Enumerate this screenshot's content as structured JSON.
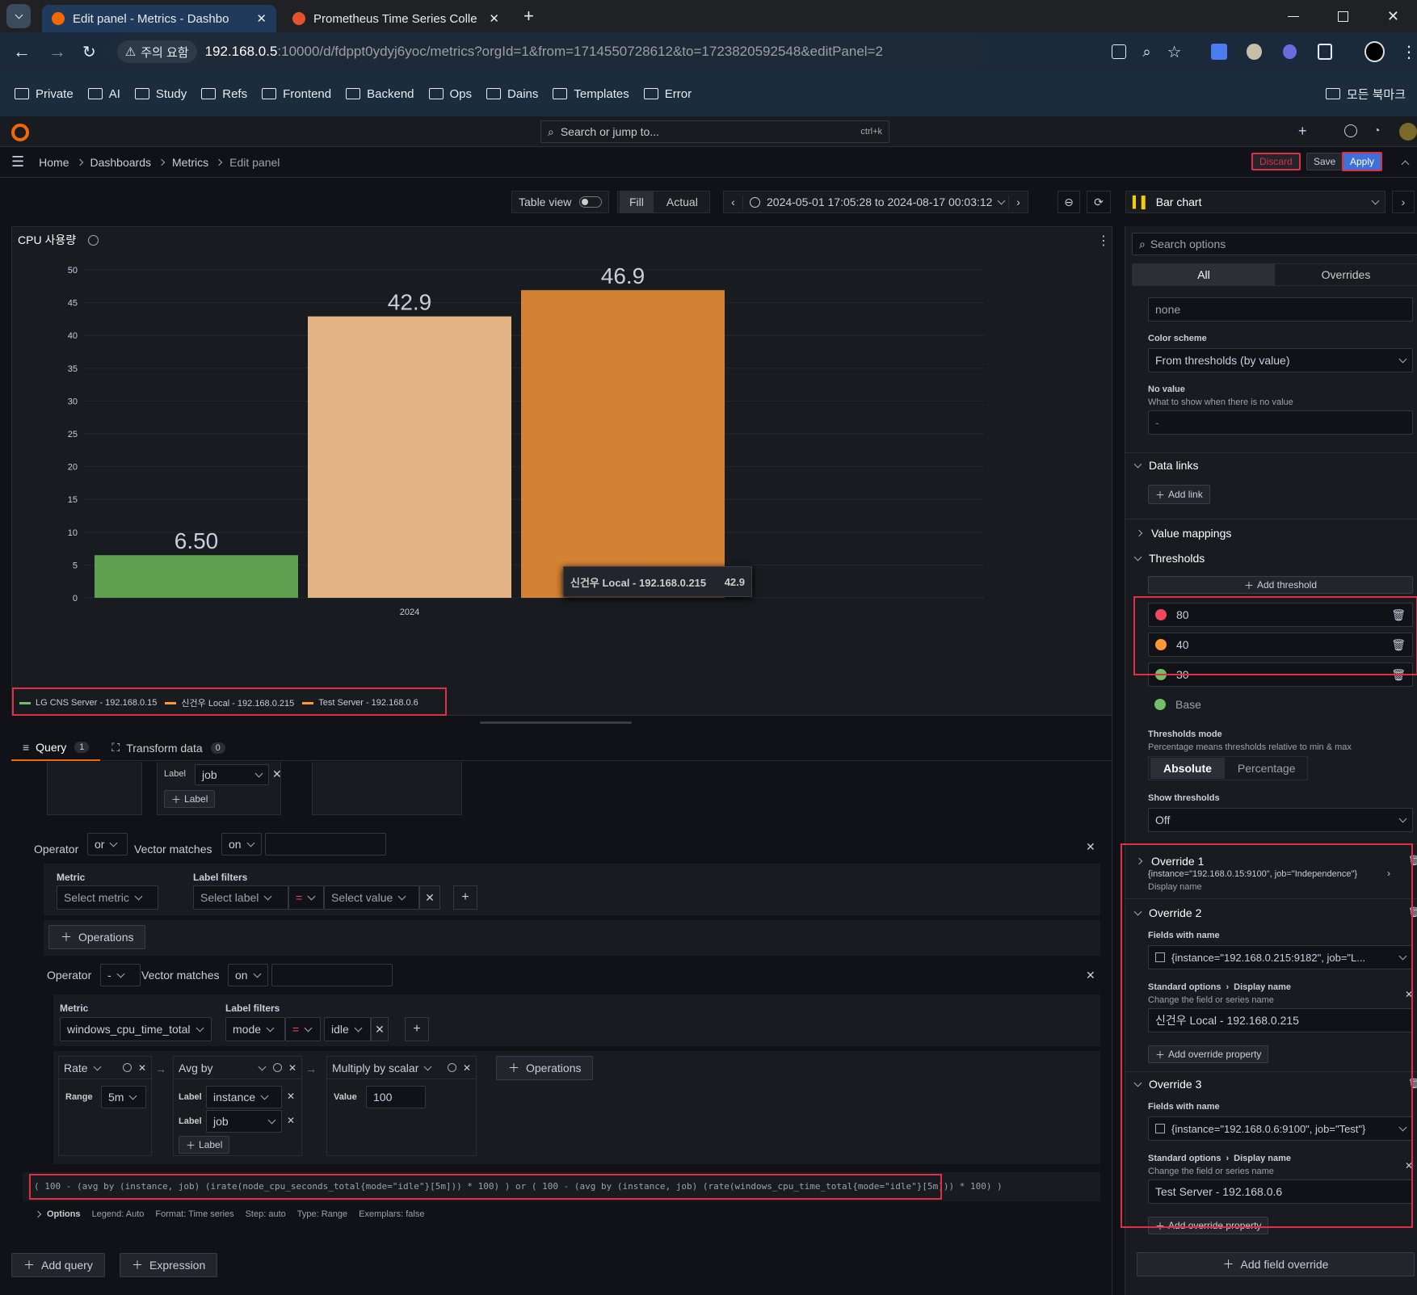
{
  "browser": {
    "tabs": [
      {
        "title": "Edit panel - Metrics - Dashbo",
        "active": true
      },
      {
        "title": "Prometheus Time Series Colle",
        "active": false
      }
    ],
    "security_label": "주의 요함",
    "url_host": "192.168.0.5",
    "url_rest": ":10000/d/fdppt0ydyj6yoc/metrics?orgId=1&from=1714550728612&to=1723820592548&editPanel=2",
    "bookmarks": [
      "Private",
      "AI",
      "Study",
      "Refs",
      "Frontend",
      "Backend",
      "Ops",
      "Dains",
      "Templates",
      "Error"
    ],
    "all_bookmarks": "모든 북마크"
  },
  "grafana": {
    "search_placeholder": "Search or jump to...",
    "search_shortcut": "ctrl+k",
    "breadcrumb": [
      "Home",
      "Dashboards",
      "Metrics",
      "Edit panel"
    ],
    "buttons": {
      "discard": "Discard",
      "save": "Save",
      "apply": "Apply"
    },
    "toolbar": {
      "table_view": "Table view",
      "fill": "Fill",
      "actual": "Actual",
      "time_range": "2024-05-01 17:05:28 to 2024-08-17 00:03:12",
      "viz": "Bar chart"
    },
    "panel": {
      "title": "CPU 사용량",
      "x_label": "2024",
      "tooltip_name": "신건우 Local - 192.168.0.215",
      "tooltip_value": "42.9",
      "legend": [
        {
          "name": "LG CNS Server - 192.168.0.15",
          "color": "#73bf69"
        },
        {
          "name": "신건우 Local - 192.168.0.215",
          "color": "#ff9830"
        },
        {
          "name": "Test Server - 192.168.0.6",
          "color": "#ff9830"
        }
      ]
    },
    "query_tabs": {
      "query": "Query",
      "query_count": "1",
      "transform": "Transform data",
      "transform_count": "0"
    },
    "query": {
      "label_word": "Label",
      "job": "job",
      "add_label": "Label",
      "operator_word": "Operator",
      "op1": "or",
      "vector_matches": "Vector matches",
      "on": "on",
      "metric_word": "Metric",
      "label_filters": "Label filters",
      "select_metric": "Select metric",
      "select_label": "Select label",
      "eq": "=",
      "select_value": "Select value",
      "operations": "Operations",
      "op2": "-",
      "metric2": "windows_cpu_time_total",
      "mode": "mode",
      "idle": "idle",
      "rate": "Rate",
      "range_word": "Range",
      "range": "5m",
      "avg_by": "Avg by",
      "instance": "instance",
      "multiply": "Multiply by scalar",
      "value_word": "Value",
      "value": "100",
      "expression": "( 100 - (avg by (instance, job) (irate(node_cpu_seconds_total{mode=\"idle\"}[5m])) * 100) ) or ( 100 - (avg by (instance, job) (rate(windows_cpu_time_total{mode=\"idle\"}[5m])) * 100) )",
      "options_line": [
        "Options",
        "Legend: Auto",
        "Format: Time series",
        "Step: auto",
        "Type: Range",
        "Exemplars: false"
      ],
      "add_query": "Add query",
      "expression_btn": "Expression"
    },
    "options_pane": {
      "search_placeholder": "Search options",
      "tabs": [
        "All",
        "Overrides"
      ],
      "unit_value": "none",
      "color_scheme_label": "Color scheme",
      "color_scheme": "From thresholds (by value)",
      "no_value_label": "No value",
      "no_value_desc": "What to show when there is no value",
      "no_value_placeholder": "-",
      "data_links": "Data links",
      "add_link": "Add link",
      "value_mappings": "Value mappings",
      "thresholds": "Thresholds",
      "add_threshold": "Add threshold",
      "threshold_items": [
        {
          "value": "80",
          "color": "#f2495c"
        },
        {
          "value": "40",
          "color": "#ff9830"
        },
        {
          "value": "30",
          "color": "#73bf69"
        },
        {
          "value": "Base",
          "color": "#73bf69"
        }
      ],
      "thresholds_mode_label": "Thresholds mode",
      "thresholds_mode_desc": "Percentage means thresholds relative to min & max",
      "mode_absolute": "Absolute",
      "mode_percentage": "Percentage",
      "show_thresholds_label": "Show thresholds",
      "show_thresholds": "Off",
      "override1_title": "Override 1",
      "override1_matcher": "{instance=\"192.168.0.15:9100\", job=\"Independence\"}",
      "override1_prop": "Display name",
      "override2_title": "Override 2",
      "fields_with_name": "Fields with name",
      "override2_field": "{instance=\"192.168.0.215:9182\", job=\"L...",
      "standard_options": "Standard options",
      "display_name": "Display name",
      "change_name_desc": "Change the field or series name",
      "override2_value": "신건우 Local - 192.168.0.215",
      "add_override_property": "Add override property",
      "override3_title": "Override 3",
      "override3_field": "{instance=\"192.168.0.6:9100\", job=\"Test\"}",
      "override3_value": "Test Server - 192.168.0.6",
      "add_field_override": "Add field override"
    }
  },
  "chart_data": {
    "type": "bar",
    "categories": [
      "2024"
    ],
    "series": [
      {
        "name": "LG CNS Server - 192.168.0.15",
        "values": [
          6.5
        ],
        "label": "6.50",
        "color": "#5fa150"
      },
      {
        "name": "신건우 Local - 192.168.0.215",
        "values": [
          42.9
        ],
        "label": "42.9",
        "color": "#e4b383"
      },
      {
        "name": "Test Server - 192.168.0.6",
        "values": [
          46.9
        ],
        "label": "46.9",
        "color": "#d38132"
      }
    ],
    "yticks": [
      "0",
      "5",
      "10",
      "15",
      "20",
      "25",
      "30",
      "35",
      "40",
      "45",
      "50"
    ],
    "ylim": [
      0,
      50
    ]
  }
}
